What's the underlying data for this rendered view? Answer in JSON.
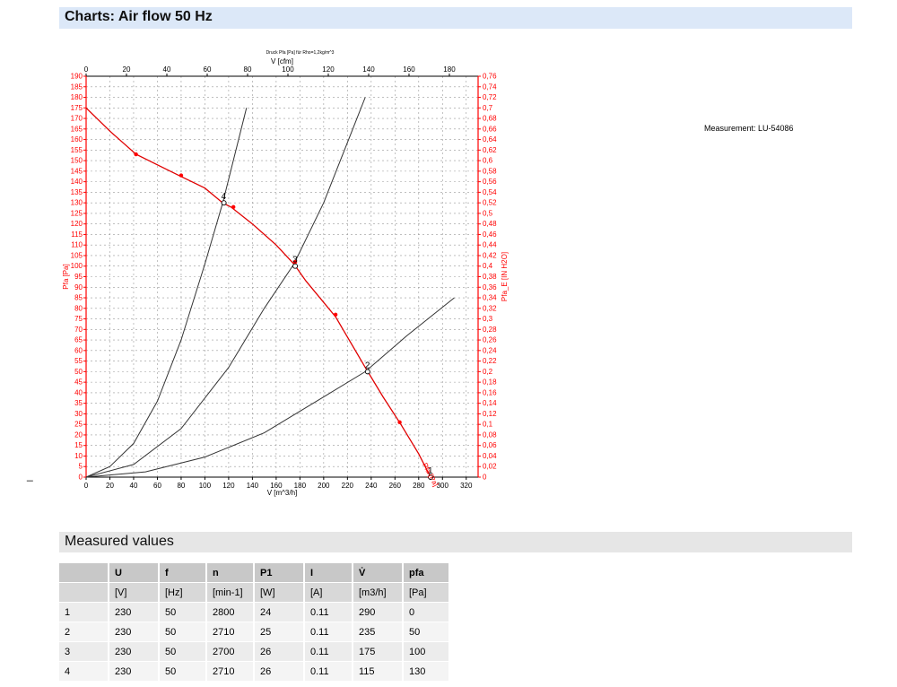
{
  "header": {
    "charts_title": "Charts: Air flow 50 Hz",
    "measured_title": "Measured values"
  },
  "measurement_label": "Measurement: LU-54086",
  "dash_mark": "_",
  "table": {
    "headers": [
      "",
      "U",
      "f",
      "n",
      "P1",
      "I",
      "V̇",
      "pfa"
    ],
    "units": [
      "",
      "[V]",
      "[Hz]",
      "[min-1]",
      "[W]",
      "[A]",
      "[m3/h]",
      "[Pa]"
    ],
    "rows": [
      [
        "1",
        "230",
        "50",
        "2800",
        "24",
        "0.11",
        "290",
        "0"
      ],
      [
        "2",
        "230",
        "50",
        "2710",
        "25",
        "0.11",
        "235",
        "50"
      ],
      [
        "3",
        "230",
        "50",
        "2700",
        "26",
        "0.11",
        "175",
        "100"
      ],
      [
        "4",
        "230",
        "50",
        "2710",
        "26",
        "0.11",
        "115",
        "130"
      ]
    ]
  },
  "chart_data": {
    "type": "line",
    "title": "Druck Pfa [Pa] für Rho=1,2kg/m^3",
    "xlabel": "V [m^3/h]",
    "x2label": "V [cfm]",
    "ylabel": "Pfa [Pa]",
    "y2label": "Pfa_E [IN H2O]",
    "xlim": [
      0,
      330
    ],
    "x_ticks": [
      0,
      20,
      40,
      60,
      80,
      100,
      120,
      140,
      160,
      180,
      200,
      220,
      240,
      260,
      280,
      300,
      320
    ],
    "x2_ticks": [
      0,
      20,
      40,
      60,
      80,
      100,
      120,
      140,
      160,
      180
    ],
    "ylim": [
      0,
      190
    ],
    "y_step": 5,
    "y2lim": [
      0,
      0.76
    ],
    "y2_step": 0.02,
    "grid": true,
    "accent_color": "#ff0000",
    "series": [
      {
        "name": "Pfa [Pa]",
        "color": "#e00000",
        "x": [
          0,
          20,
          42,
          60,
          78,
          100,
          115,
          122,
          140,
          160,
          175,
          185,
          210,
          235,
          250,
          265,
          280,
          290
        ],
        "y": [
          175,
          164,
          153,
          148,
          143,
          137,
          130,
          128,
          120,
          110,
          101,
          93,
          76,
          52,
          38,
          25,
          11,
          0
        ]
      },
      {
        "name": "",
        "color": "#333333",
        "x": [
          0,
          20,
          40,
          60,
          80,
          100,
          115,
          135
        ],
        "y": [
          0,
          5,
          16,
          36,
          65,
          101,
          130,
          175
        ]
      },
      {
        "name": "",
        "color": "#333333",
        "x": [
          0,
          40,
          80,
          120,
          150,
          175,
          200,
          235
        ],
        "y": [
          0,
          6,
          23,
          52,
          80,
          101,
          130,
          180
        ]
      },
      {
        "name": "",
        "color": "#333333",
        "x": [
          0,
          50,
          100,
          150,
          200,
          235,
          270,
          310
        ],
        "y": [
          0,
          2.5,
          9.5,
          21,
          38,
          50,
          67,
          85
        ]
      }
    ],
    "operating_points": [
      {
        "label": "1",
        "x": 290,
        "y": 0
      },
      {
        "label": "2",
        "x": 237,
        "y": 50
      },
      {
        "label": "3",
        "x": 176,
        "y": 100
      },
      {
        "label": "4",
        "x": 116,
        "y": 130
      }
    ],
    "red_markers": [
      {
        "x": 42,
        "y": 153
      },
      {
        "x": 80,
        "y": 143
      },
      {
        "x": 124,
        "y": 128
      },
      {
        "x": 176,
        "y": 102
      },
      {
        "x": 210,
        "y": 77
      },
      {
        "x": 264,
        "y": 26
      }
    ],
    "curve_label": "Pfa [Pa]",
    "curve_label_pos": {
      "x": 283,
      "y": 6
    }
  }
}
